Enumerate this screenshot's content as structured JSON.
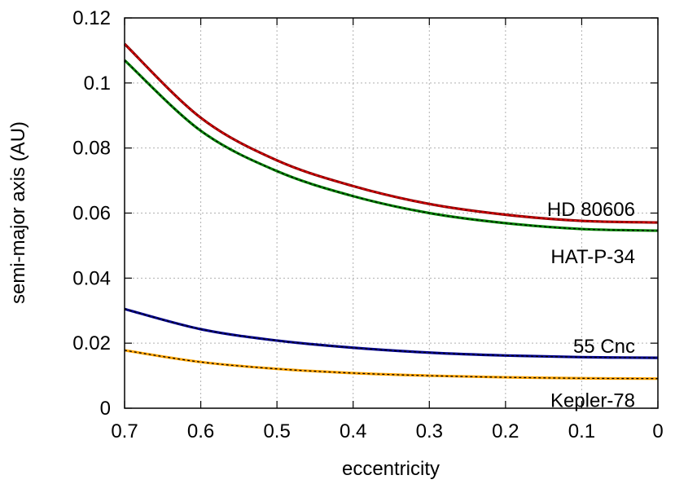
{
  "chart_data": {
    "type": "line",
    "xlabel": "eccentricity",
    "ylabel": "semi-major axis (AU)",
    "xlim": [
      0.7,
      0
    ],
    "ylim": [
      0,
      0.12
    ],
    "x_reversed": true,
    "grid": true,
    "legend": "inline labels at right end of curves",
    "x_ticks": [
      {
        "value": 0.7,
        "label": "0.7"
      },
      {
        "value": 0.6,
        "label": "0.6"
      },
      {
        "value": 0.5,
        "label": "0.5"
      },
      {
        "value": 0.4,
        "label": "0.4"
      },
      {
        "value": 0.3,
        "label": "0.3"
      },
      {
        "value": 0.2,
        "label": "0.2"
      },
      {
        "value": 0.1,
        "label": "0.1"
      },
      {
        "value": 0,
        "label": "0"
      }
    ],
    "y_ticks": [
      {
        "value": 0,
        "label": "0"
      },
      {
        "value": 0.02,
        "label": "0.02"
      },
      {
        "value": 0.04,
        "label": "0.04"
      },
      {
        "value": 0.06,
        "label": "0.06"
      },
      {
        "value": 0.08,
        "label": "0.08"
      },
      {
        "value": 0.1,
        "label": "0.1"
      },
      {
        "value": 0.12,
        "label": "0.12"
      }
    ],
    "series": [
      {
        "name": "HD 80606",
        "color": "#8b0000",
        "overlay_color": "#ff0000",
        "x": [
          0.7,
          0.6,
          0.5,
          0.4,
          0.3,
          0.2,
          0.1,
          0.0
        ],
        "values": [
          0.112,
          0.0893,
          0.0762,
          0.0683,
          0.0628,
          0.0595,
          0.0576,
          0.0571
        ]
      },
      {
        "name": "HAT-P-34",
        "color": "#008000",
        "overlay_color": "#000000",
        "x": [
          0.7,
          0.6,
          0.5,
          0.4,
          0.3,
          0.2,
          0.1,
          0.0
        ],
        "values": [
          0.107,
          0.0853,
          0.0729,
          0.0652,
          0.06,
          0.0569,
          0.0551,
          0.0546
        ]
      },
      {
        "name": "55 Cnc",
        "color": "#00008b",
        "overlay_color": "#000000",
        "x": [
          0.7,
          0.6,
          0.5,
          0.4,
          0.3,
          0.2,
          0.1,
          0.0
        ],
        "values": [
          0.0305,
          0.0243,
          0.0208,
          0.0186,
          0.0171,
          0.0162,
          0.0157,
          0.0155
        ]
      },
      {
        "name": "Kepler-78",
        "color": "#ffa500",
        "overlay_color": "#000000",
        "x": [
          0.7,
          0.6,
          0.5,
          0.4,
          0.3,
          0.2,
          0.1,
          0.0
        ],
        "values": [
          0.0178,
          0.0142,
          0.0121,
          0.0108,
          0.01,
          0.0095,
          0.0092,
          0.0091
        ]
      }
    ]
  }
}
